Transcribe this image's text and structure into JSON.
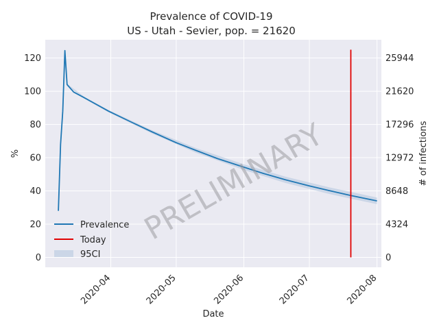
{
  "chart_data": {
    "type": "line",
    "title_line1": "Prevalence of COVID-19",
    "title_line2": "US - Utah - Sevier, pop. = 21620",
    "xlabel": "Date",
    "ylabel": "%",
    "ylabel_right": "# of infections",
    "ylim": [
      -6,
      131
    ],
    "xlim": [
      "2020-03-02",
      "2020-08-03"
    ],
    "left_ticks": [
      0,
      20,
      40,
      60,
      80,
      100,
      120
    ],
    "left_tick_labels": [
      "0",
      "20",
      "40",
      "60",
      "80",
      "100",
      "120"
    ],
    "right_ticks": [
      0,
      4324,
      8648,
      12972,
      17296,
      21620,
      25944
    ],
    "right_tick_labels": [
      "0",
      "4324",
      "8648",
      "12972",
      "17296",
      "21620",
      "25944"
    ],
    "population": 21620,
    "x_ticks": [
      "2020-04-01",
      "2020-05-01",
      "2020-06-01",
      "2020-07-01",
      "2020-08-01"
    ],
    "x_tick_labels": [
      "2020-04",
      "2020-05",
      "2020-06",
      "2020-07",
      "2020-08"
    ],
    "series": [
      {
        "name": "Prevalence",
        "color": "#1f77b4",
        "x": [
          "2020-03-08",
          "2020-03-09",
          "2020-03-10",
          "2020-03-11",
          "2020-03-12",
          "2020-03-15",
          "2020-03-20",
          "2020-03-31",
          "2020-04-10",
          "2020-04-20",
          "2020-05-01",
          "2020-05-10",
          "2020-05-20",
          "2020-06-01",
          "2020-06-10",
          "2020-06-20",
          "2020-07-01",
          "2020-07-10",
          "2020-07-20",
          "2020-08-01"
        ],
        "y": [
          28,
          68,
          88,
          124.5,
          104,
          99.5,
          96,
          88,
          81.7,
          75.5,
          69,
          64.4,
          59.4,
          54.3,
          50.5,
          46.7,
          43,
          40.2,
          37.2,
          34
        ]
      }
    ],
    "ci": {
      "name": "95CI",
      "color": "#b0c4de",
      "x": [
        "2020-03-12",
        "2020-03-20",
        "2020-03-31",
        "2020-04-20",
        "2020-05-10",
        "2020-06-01",
        "2020-06-20",
        "2020-07-10",
        "2020-08-01"
      ],
      "upper": [
        104.5,
        96.6,
        88.7,
        76.5,
        65.8,
        56,
        48.6,
        42.2,
        36
      ],
      "lower": [
        103.5,
        95.4,
        87.3,
        74.5,
        63,
        52.6,
        44.8,
        38.2,
        32
      ]
    },
    "today": {
      "name": "Today",
      "date": "2020-07-20",
      "y_from": 0,
      "y_to": 125,
      "color": "#e00000"
    },
    "legend": [
      "Prevalence",
      "Today",
      "95CI"
    ],
    "legend_position": "lower-left",
    "watermark": "PRELIMINARY",
    "grid": true,
    "background": "#eaeaf2"
  }
}
